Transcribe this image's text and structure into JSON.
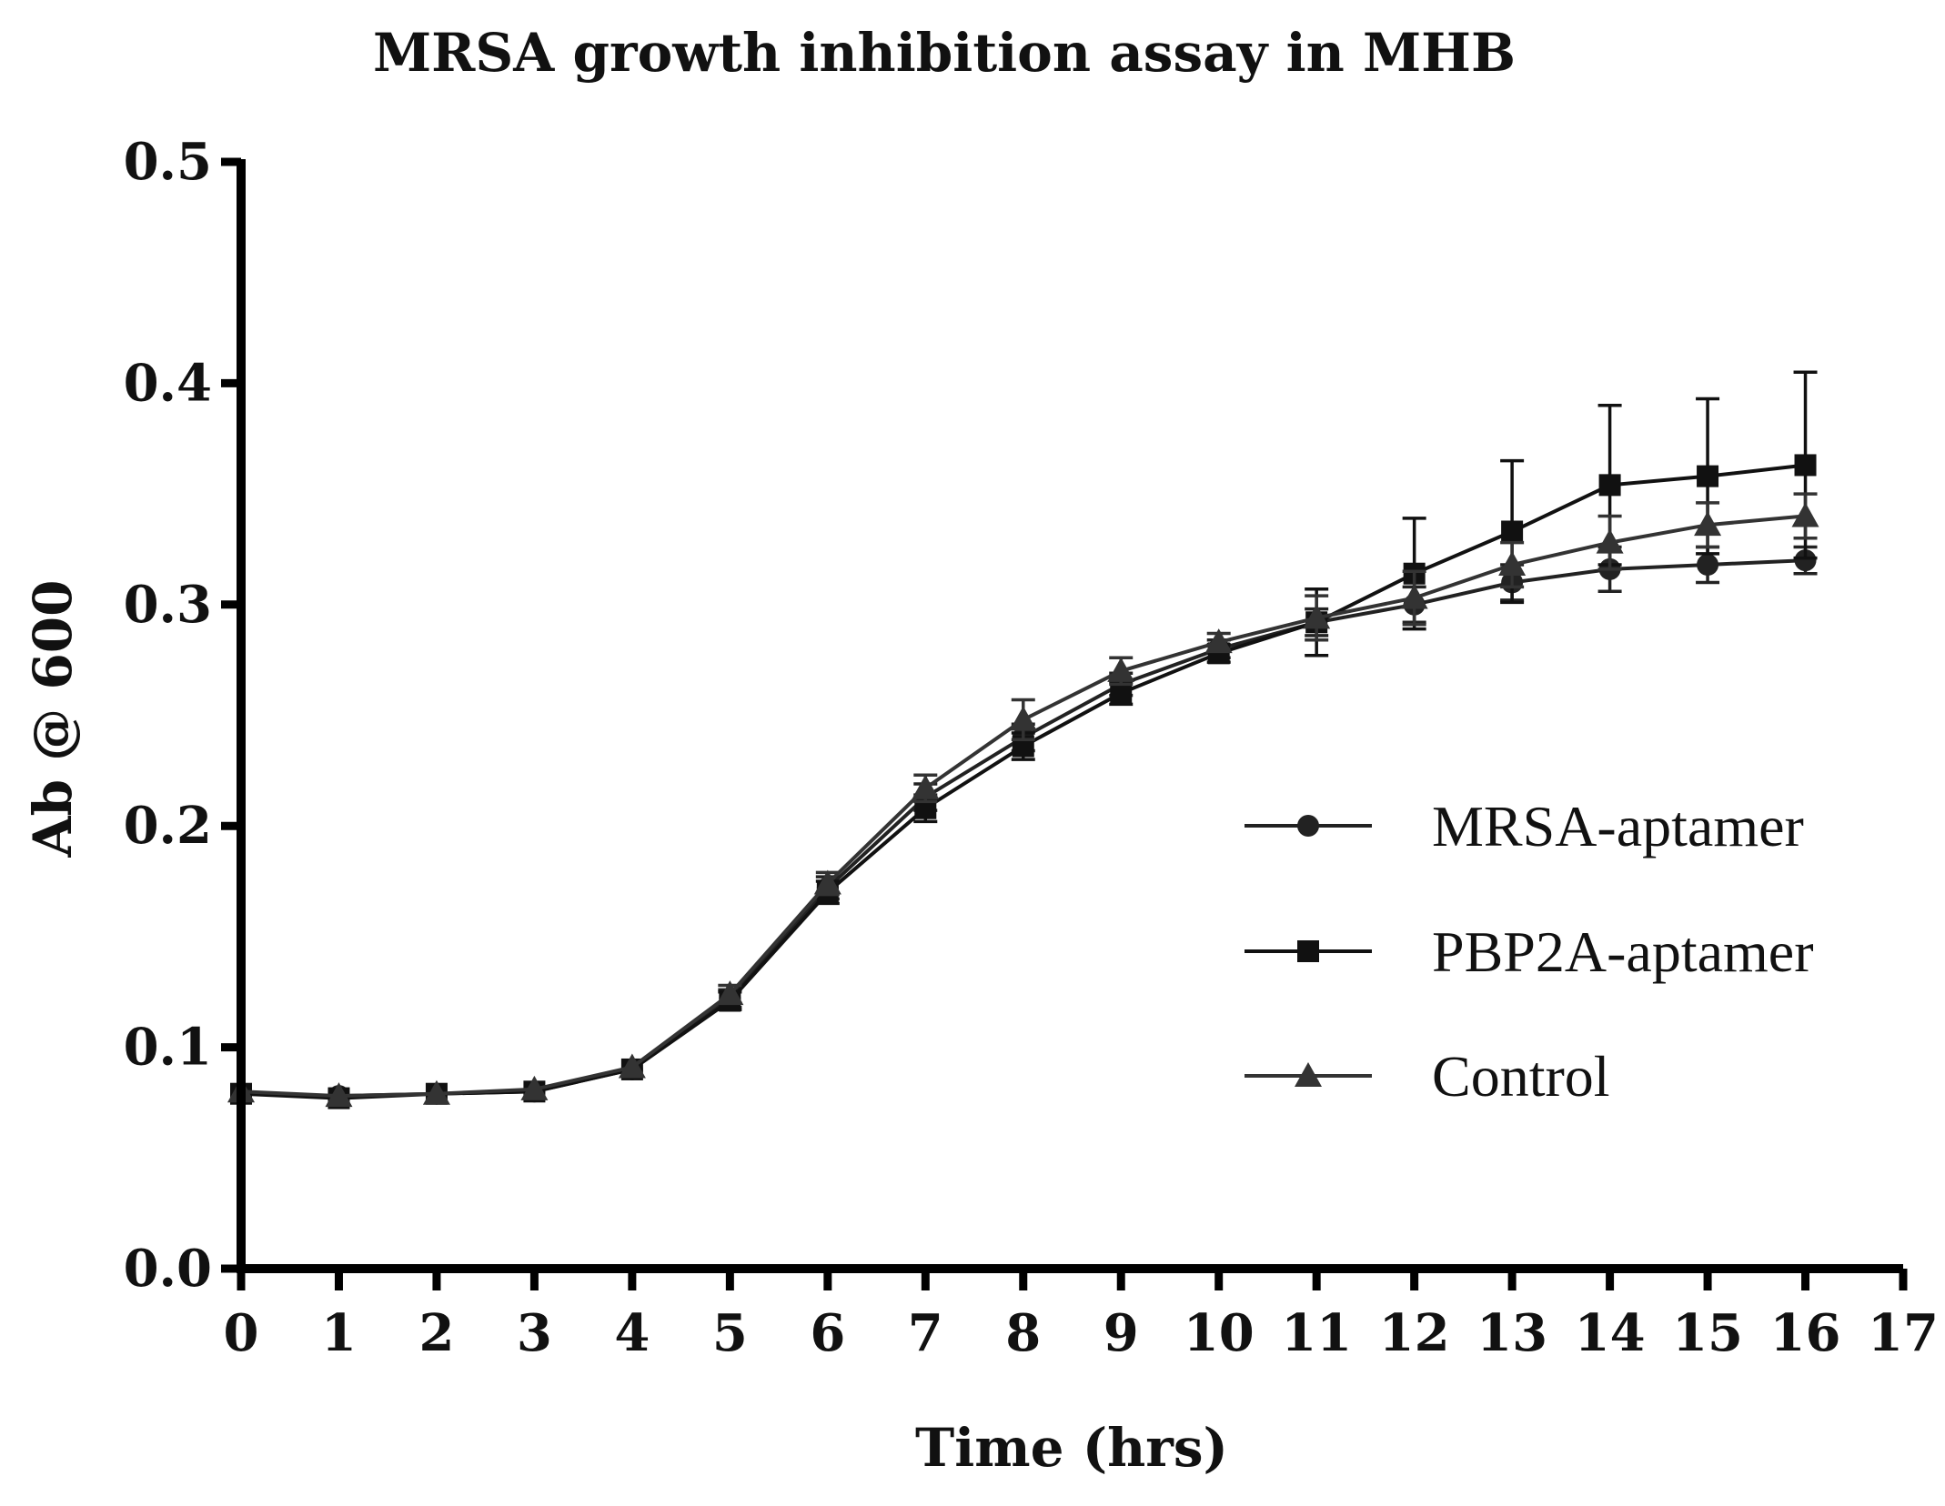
{
  "chart_data": {
    "type": "line",
    "title": "MRSA growth inhibition assay in MHB",
    "xlabel": "Time (hrs)",
    "ylabel": "Ab @ 600",
    "xlim": [
      0,
      17
    ],
    "ylim": [
      0,
      0.5
    ],
    "xticks": [
      0,
      1,
      2,
      3,
      4,
      5,
      6,
      7,
      8,
      9,
      10,
      11,
      12,
      13,
      14,
      15,
      16,
      17
    ],
    "yticks": [
      0.0,
      0.1,
      0.2,
      0.3,
      0.4,
      0.5
    ],
    "ytick_labels": [
      "0.0",
      "0.1",
      "0.2",
      "0.3",
      "0.4",
      "0.5"
    ],
    "grid": false,
    "legend_position": "right",
    "x": [
      0,
      1,
      2,
      3,
      4,
      5,
      6,
      7,
      8,
      9,
      10,
      11,
      12,
      13,
      14,
      15,
      16
    ],
    "series": [
      {
        "name": "MRSA-aptamer",
        "marker": "circle",
        "color": "#222222",
        "values": [
          0.079,
          0.078,
          0.079,
          0.08,
          0.09,
          0.122,
          0.172,
          0.213,
          0.24,
          0.264,
          0.28,
          0.292,
          0.3,
          0.31,
          0.316,
          0.318,
          0.32
        ],
        "errors": [
          0.002,
          0.002,
          0.002,
          0.002,
          0.003,
          0.004,
          0.005,
          0.006,
          0.006,
          0.005,
          0.004,
          0.006,
          0.008,
          0.008,
          0.01,
          0.008,
          0.006
        ]
      },
      {
        "name": "PBP2A-aptamer",
        "marker": "square",
        "color": "#111111",
        "values": [
          0.079,
          0.077,
          0.079,
          0.08,
          0.09,
          0.121,
          0.17,
          0.208,
          0.236,
          0.26,
          0.278,
          0.292,
          0.314,
          0.333,
          0.354,
          0.358,
          0.363
        ],
        "errors": [
          0.002,
          0.002,
          0.002,
          0.002,
          0.003,
          0.004,
          0.005,
          0.006,
          0.006,
          0.005,
          0.004,
          0.015,
          0.025,
          0.032,
          0.036,
          0.035,
          0.042
        ]
      },
      {
        "name": "Control",
        "marker": "triangle",
        "color": "#333333",
        "values": [
          0.08,
          0.078,
          0.079,
          0.081,
          0.091,
          0.124,
          0.174,
          0.217,
          0.248,
          0.27,
          0.283,
          0.294,
          0.303,
          0.318,
          0.328,
          0.336,
          0.34
        ],
        "errors": [
          0.002,
          0.002,
          0.002,
          0.002,
          0.003,
          0.004,
          0.005,
          0.006,
          0.009,
          0.006,
          0.004,
          0.01,
          0.012,
          0.01,
          0.012,
          0.01,
          0.01
        ]
      }
    ]
  }
}
